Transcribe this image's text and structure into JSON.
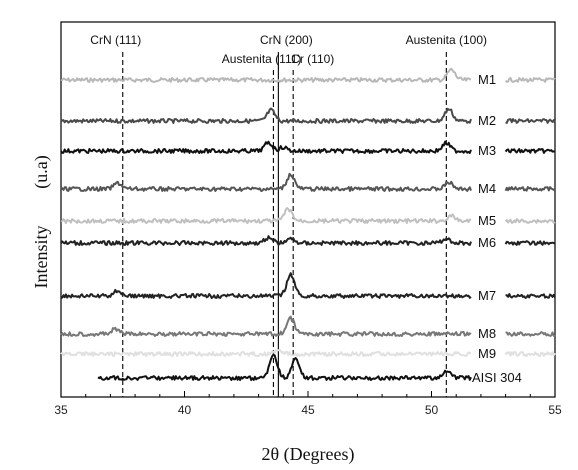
{
  "chart_data": {
    "type": "line",
    "title": "",
    "xlabel": "2θ (Degrees)",
    "ylabel_parts": [
      "Intensity",
      "(u.a)"
    ],
    "xlim": [
      35,
      55
    ],
    "xticks": [
      "35",
      "40",
      "45",
      "50",
      "55"
    ],
    "grid": false,
    "reference_lines": [
      {
        "label": "CrN (111)",
        "x": 37.5,
        "style": "dashed"
      },
      {
        "label": "Austenita (111)",
        "x": 43.6,
        "style": "dashed"
      },
      {
        "label": "CrN (200)",
        "x": 43.8,
        "style": "solid"
      },
      {
        "label": "Cr (110)",
        "x": 44.4,
        "style": "dashed"
      },
      {
        "label": "Austenita (100)",
        "x": 50.6,
        "style": "dashed"
      }
    ],
    "series": [
      {
        "name": "M1",
        "color": "#b8b8b8",
        "peaks": [
          [
            50.8,
            0.85
          ]
        ]
      },
      {
        "name": "M2",
        "color": "#4a4a4a",
        "peaks": [
          [
            43.5,
            0.9
          ],
          [
            50.7,
            1.0
          ]
        ]
      },
      {
        "name": "M3",
        "color": "#111111",
        "peaks": [
          [
            43.4,
            0.7
          ],
          [
            44.0,
            0.3
          ],
          [
            50.6,
            0.65
          ]
        ]
      },
      {
        "name": "M4",
        "color": "#555555",
        "peaks": [
          [
            37.3,
            0.5
          ],
          [
            44.3,
            1.2
          ],
          [
            50.7,
            0.55
          ]
        ]
      },
      {
        "name": "M5",
        "color": "#c0c0c0",
        "peaks": [
          [
            44.2,
            1.0
          ],
          [
            50.8,
            0.4
          ]
        ]
      },
      {
        "name": "M6",
        "color": "#222222",
        "peaks": [
          [
            43.4,
            0.45
          ],
          [
            44.3,
            0.35
          ],
          [
            50.6,
            0.35
          ]
        ]
      },
      {
        "name": "M7",
        "color": "#222222",
        "peaks": [
          [
            37.3,
            0.45
          ],
          [
            44.3,
            1.8
          ]
        ]
      },
      {
        "name": "M8",
        "color": "#777777",
        "peaks": [
          [
            37.2,
            0.4
          ],
          [
            44.3,
            1.3
          ]
        ]
      },
      {
        "name": "M9",
        "color": "#e0e0e0",
        "peaks": [
          [
            43.8,
            0.3
          ]
        ]
      },
      {
        "name": "AISI 304",
        "color": "#111111",
        "peaks": [
          [
            43.6,
            2.0
          ],
          [
            44.5,
            1.6
          ],
          [
            50.6,
            0.6
          ]
        ]
      }
    ]
  }
}
